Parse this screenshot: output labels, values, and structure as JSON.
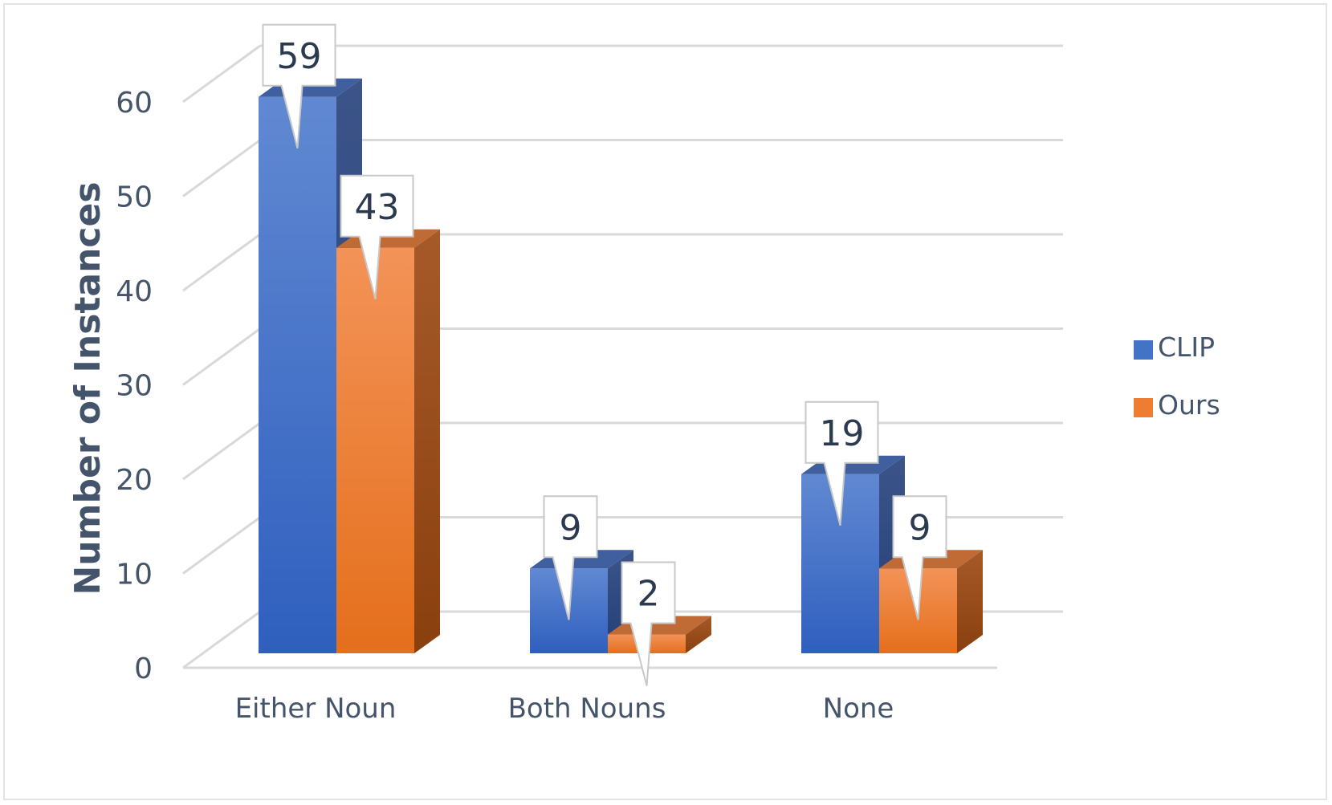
{
  "chart_data": {
    "type": "bar",
    "title": "",
    "xlabel": "",
    "ylabel": "Number of Instances",
    "categories": [
      "Either Noun",
      "Both Nouns",
      "None"
    ],
    "series": [
      {
        "name": "CLIP",
        "values": [
          59,
          9,
          19
        ],
        "color": "#4472C4"
      },
      {
        "name": "Ours",
        "values": [
          43,
          2,
          9
        ],
        "color": "#ED7D31"
      }
    ],
    "ylim": [
      0,
      60
    ],
    "yticks": [
      0,
      10,
      20,
      30,
      40,
      50,
      60
    ],
    "data_labels": true,
    "grid": true,
    "style": "3d-clustered-column",
    "legend_position": "right"
  },
  "colors": {
    "clip": "#4472C4",
    "ours": "#ED7D31",
    "text": "#44546A",
    "grid": "#D9D9D9"
  }
}
